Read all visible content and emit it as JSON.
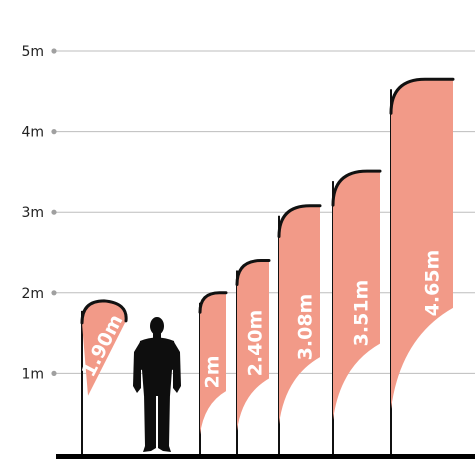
{
  "colors": {
    "flag_fill": "#f29a88",
    "flag_outline": "#111111",
    "pole": "#111111",
    "grid": "#bdbdbd",
    "tick_dot": "#a0a0a0",
    "tick_text": "#222222",
    "silhouette": "#0e0e0e",
    "ground": "#000000"
  },
  "scale": {
    "ticks": [
      {
        "value": 1,
        "label": "1m"
      },
      {
        "value": 2,
        "label": "2m"
      },
      {
        "value": 3,
        "label": "3m"
      },
      {
        "value": 4,
        "label": "4m"
      },
      {
        "value": 5,
        "label": "5m"
      }
    ]
  },
  "flags": [
    {
      "name": "flag-1-90m",
      "height_m": 1.9,
      "label": "1.90m"
    },
    {
      "name": "flag-2m",
      "height_m": 2.0,
      "label": "2m"
    },
    {
      "name": "flag-2-40m",
      "height_m": 2.4,
      "label": "2.40m"
    },
    {
      "name": "flag-3-08m",
      "height_m": 3.08,
      "label": "3.08m"
    },
    {
      "name": "flag-3-51m",
      "height_m": 3.51,
      "label": "3.51m"
    },
    {
      "name": "flag-4-65m",
      "height_m": 4.65,
      "label": "4.65m"
    }
  ],
  "figure": {
    "icon": "person-silhouette-icon"
  }
}
